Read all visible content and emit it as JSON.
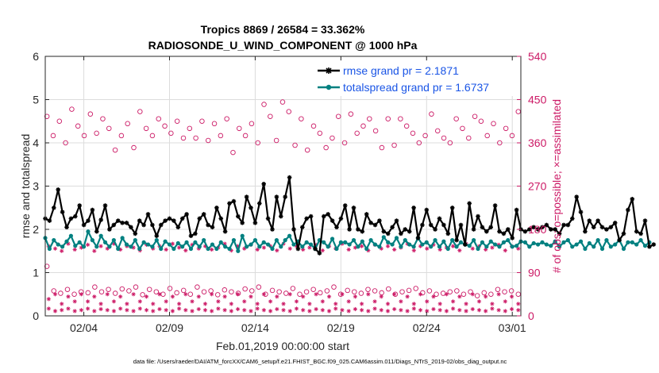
{
  "chart_data": {
    "type": "line",
    "title": "Tropics 8869 / 26584 = 33.362%",
    "subtitle": "RADIOSONDE_U_WIND_COMPONENT @ 1000 hPa",
    "xlabel": "Feb.01,2019 00:00:00 start",
    "ylabel_left": "rmse and totalspread",
    "ylabel_right": "# of obs: o=possible; ×=assimilated",
    "footnote": "data file: /Users/raeder/DAI/ATM_forcXX/CAM6_setup/f.e21.FHIST_BGC.f09_025.CAM6assim.011/Diags_NTrS_2019-02/obs_diag_output.nc",
    "x_range_days": [
      0.75,
      28.5
    ],
    "x_ticks": [
      {
        "day": 3,
        "label": "02/04"
      },
      {
        "day": 8,
        "label": "02/09"
      },
      {
        "day": 13,
        "label": "02/14"
      },
      {
        "day": 18,
        "label": "02/19"
      },
      {
        "day": 23,
        "label": "02/24"
      },
      {
        "day": 28,
        "label": "03/01"
      }
    ],
    "ylim_left": [
      0,
      6
    ],
    "y_ticks_left": [
      "0",
      "1",
      "2",
      "3",
      "4",
      "5",
      "6"
    ],
    "ylim_right": [
      0,
      540
    ],
    "y_ticks_right": [
      "0",
      "90",
      "180",
      "270",
      "360",
      "450",
      "540"
    ],
    "grid": true,
    "legend_position": "top-right",
    "colors": {
      "rmse": "#000000",
      "spread": "#008080",
      "obs": "#cc1a66",
      "legend_text": "#1a55e6",
      "grid": "#dcdcdc"
    },
    "time_step_days": 0.25,
    "start_day": 0.75,
    "series": [
      {
        "name": "rmse grand pr = 2.1871",
        "values": [
          2.25,
          2.2,
          2.5,
          2.92,
          2.4,
          2.05,
          2.25,
          2.3,
          2.55,
          2.1,
          2.2,
          2.45,
          1.95,
          2.22,
          2.55,
          2.0,
          2.1,
          2.2,
          2.15,
          2.15,
          2.05,
          1.9,
          2.2,
          2.1,
          2.35,
          2.1,
          1.85,
          2.1,
          2.2,
          2.25,
          2.2,
          2.05,
          2.25,
          2.35,
          1.85,
          1.9,
          2.25,
          2.35,
          2.1,
          2.05,
          2.5,
          2.25,
          1.95,
          2.6,
          2.65,
          2.3,
          2.15,
          2.75,
          2.5,
          2.15,
          2.6,
          3.05,
          2.25,
          2.0,
          2.75,
          2.3,
          2.75,
          3.2,
          2.0,
          1.55,
          2.05,
          2.25,
          2.3,
          1.55,
          1.45,
          2.3,
          2.35,
          2.2,
          2.05,
          2.25,
          2.55,
          2.0,
          2.5,
          2.0,
          1.95,
          2.35,
          2.15,
          2.1,
          2.2,
          1.95,
          1.9,
          2.05,
          2.2,
          1.9,
          2.0,
          1.95,
          2.5,
          1.8,
          2.1,
          2.45,
          2.1,
          2.0,
          2.25,
          2.1,
          1.9,
          2.5,
          1.75,
          2.1,
          1.65,
          2.6,
          2.0,
          2.3,
          2.05,
          1.95,
          2.05,
          2.55,
          1.95,
          1.9,
          2.0,
          1.8,
          2.45,
          2.0,
          1.95,
          2.0,
          2.05,
          2.0,
          2.05,
          2.1,
          2.0,
          2.0,
          1.9,
          2.1,
          2.1,
          2.25,
          2.75,
          2.4,
          1.95,
          2.2,
          2.05,
          2.2,
          2.05,
          2.0,
          2.05,
          2.15,
          1.75,
          1.9,
          2.45,
          2.7,
          1.95,
          1.9,
          2.2,
          1.6,
          1.65
        ]
      },
      {
        "name": "totalspread grand pr = 1.6737",
        "values": [
          1.8,
          1.55,
          1.75,
          1.65,
          1.6,
          1.72,
          1.85,
          1.62,
          1.7,
          1.6,
          1.95,
          1.75,
          1.6,
          1.85,
          1.7,
          1.6,
          1.75,
          1.55,
          1.8,
          1.65,
          1.6,
          1.75,
          1.55,
          1.7,
          1.65,
          1.6,
          1.75,
          1.55,
          1.72,
          1.65,
          1.55,
          1.68,
          1.6,
          1.7,
          1.55,
          1.7,
          1.6,
          1.75,
          1.55,
          1.65,
          1.55,
          1.7,
          1.6,
          1.55,
          1.75,
          1.5,
          1.85,
          1.6,
          1.65,
          1.75,
          1.6,
          1.7,
          1.65,
          1.55,
          1.75,
          1.6,
          1.75,
          1.85,
          1.65,
          1.72,
          1.6,
          1.7,
          1.65,
          1.55,
          1.75,
          1.7,
          1.6,
          1.78,
          1.55,
          1.7,
          1.7,
          1.65,
          1.75,
          1.6,
          1.72,
          1.55,
          1.75,
          1.65,
          1.6,
          1.82,
          1.7,
          1.65,
          1.8,
          1.6,
          1.75,
          1.65,
          1.6,
          1.8,
          1.65,
          1.7,
          1.6,
          1.75,
          1.6,
          1.72,
          1.55,
          1.75,
          1.6,
          1.7,
          1.65,
          1.62,
          1.75,
          1.55,
          1.7,
          1.6,
          1.72,
          1.65,
          1.6,
          1.7,
          1.75,
          1.6,
          1.62,
          1.72,
          1.7,
          1.6,
          1.68,
          1.65,
          1.7,
          1.65,
          1.62,
          1.72,
          1.6,
          1.7,
          1.75,
          1.6,
          1.65,
          1.72,
          1.55,
          1.68,
          1.6,
          1.75,
          1.55,
          1.75,
          1.6,
          1.65,
          1.75,
          1.55,
          1.7,
          1.7,
          1.65,
          1.75,
          1.62,
          1.7
        ]
      }
    ],
    "obs_possible_nominal": [
      415,
      375,
      405,
      360,
      430,
      395,
      375,
      420,
      380,
      410,
      390,
      345,
      375,
      400,
      350,
      425,
      390,
      375,
      410,
      395,
      380,
      405,
      370,
      390,
      370,
      405,
      365,
      400,
      375,
      410,
      340,
      390,
      375,
      400,
      360,
      440,
      415,
      365,
      445,
      425,
      355,
      410,
      345,
      395,
      380,
      350,
      370,
      415,
      360,
      420,
      380,
      395,
      410,
      385,
      350,
      410,
      355,
      410,
      395,
      380,
      360,
      375,
      420,
      385,
      370,
      360,
      410,
      390,
      370,
      415,
      405,
      375,
      400,
      360,
      390,
      375,
      425
    ],
    "obs_possible_low": [
      103,
      52,
      47,
      55,
      45,
      50,
      48,
      60,
      50,
      55,
      47,
      56,
      52,
      60,
      44,
      55,
      50,
      45,
      57,
      48,
      53,
      45,
      60,
      50,
      52,
      44,
      54,
      50,
      47,
      56,
      52,
      60,
      45,
      53,
      50,
      47,
      57,
      45,
      50,
      55,
      48,
      52,
      60,
      45,
      53,
      50,
      47,
      55,
      52,
      48,
      56,
      45,
      50,
      53,
      57,
      48,
      52,
      45,
      47,
      50,
      52,
      45,
      50,
      42,
      48,
      45,
      55,
      50,
      52,
      45
    ],
    "obs_assimilated": [
      [
        145,
        35,
        15
      ],
      [
        140,
        45,
        10
      ],
      [
        135,
        25,
        12
      ],
      [
        150,
        40,
        15
      ],
      [
        138,
        30,
        10
      ],
      [
        142,
        45,
        12
      ],
      [
        148,
        30,
        15
      ],
      [
        135,
        40,
        10
      ],
      [
        145,
        25,
        14
      ],
      [
        140,
        45,
        12
      ],
      [
        150,
        30,
        10
      ],
      [
        138,
        40,
        15
      ],
      [
        145,
        25,
        12
      ],
      [
        142,
        45,
        10
      ],
      [
        136,
        30,
        15
      ],
      [
        148,
        40,
        12
      ],
      [
        140,
        25,
        10
      ],
      [
        145,
        45,
        14
      ],
      [
        138,
        30,
        12
      ],
      [
        150,
        40,
        10
      ],
      [
        142,
        25,
        15
      ],
      [
        136,
        45,
        12
      ],
      [
        148,
        30,
        10
      ],
      [
        140,
        40,
        14
      ],
      [
        145,
        25,
        12
      ],
      [
        138,
        45,
        10
      ],
      [
        142,
        30,
        15
      ],
      [
        150,
        40,
        12
      ],
      [
        136,
        25,
        10
      ],
      [
        145,
        45,
        14
      ],
      [
        140,
        30,
        12
      ],
      [
        148,
        40,
        10
      ],
      [
        138,
        25,
        15
      ],
      [
        142,
        45,
        12
      ],
      [
        145,
        30,
        10
      ],
      [
        136,
        40,
        14
      ],
      [
        150,
        25,
        12
      ],
      [
        140,
        45,
        10
      ],
      [
        145,
        30,
        15
      ],
      [
        138,
        40,
        12
      ],
      [
        142,
        25,
        10
      ],
      [
        148,
        45,
        14
      ],
      [
        136,
        30,
        12
      ],
      [
        145,
        40,
        10
      ],
      [
        140,
        25,
        15
      ],
      [
        150,
        45,
        12
      ],
      [
        138,
        30,
        10
      ],
      [
        142,
        40,
        14
      ],
      [
        145,
        25,
        12
      ],
      [
        136,
        45,
        10
      ],
      [
        148,
        30,
        15
      ],
      [
        140,
        40,
        12
      ],
      [
        145,
        25,
        10
      ],
      [
        138,
        45,
        14
      ],
      [
        142,
        30,
        12
      ],
      [
        150,
        40,
        10
      ],
      [
        136,
        25,
        15
      ],
      [
        145,
        45,
        12
      ],
      [
        140,
        30,
        10
      ],
      [
        148,
        40,
        14
      ],
      [
        138,
        25,
        12
      ],
      [
        142,
        45,
        10
      ],
      [
        145,
        30,
        15
      ],
      [
        136,
        40,
        12
      ],
      [
        150,
        25,
        10
      ],
      [
        140,
        45,
        14
      ],
      [
        145,
        30,
        12
      ],
      [
        138,
        40,
        10
      ],
      [
        142,
        25,
        15
      ],
      [
        148,
        45,
        12
      ],
      [
        136,
        30,
        10
      ],
      [
        145,
        40,
        14
      ],
      [
        140,
        25,
        12
      ]
    ]
  }
}
